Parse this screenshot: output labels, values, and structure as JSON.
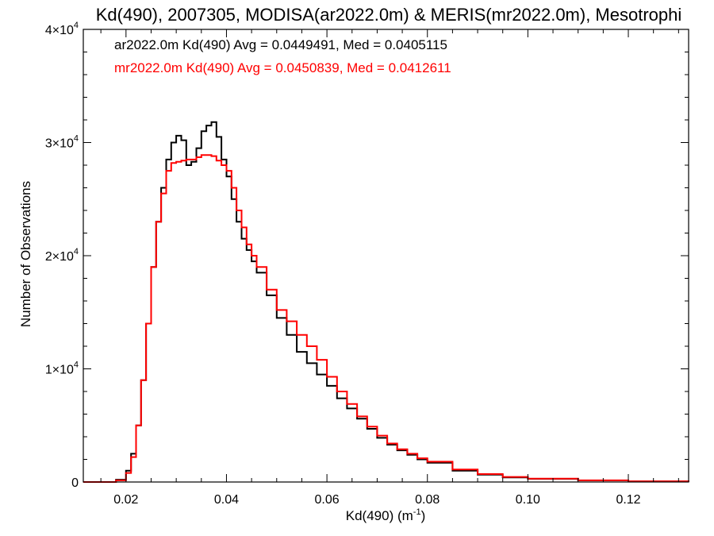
{
  "chart_data": {
    "type": "line",
    "title": "Kd(490), 2007305, MODISA(ar2022.0m) & MERIS(mr2022.0m), Mesotrophi",
    "xlabel": {
      "base": "Kd(490) (m",
      "sup": "-1",
      "tail": ")"
    },
    "ylabel": "Number of Observations",
    "xlim": [
      0.0115,
      0.132
    ],
    "ylim": [
      0,
      40000
    ],
    "x_ticks": [
      {
        "value": 0.02,
        "label": "0.02"
      },
      {
        "value": 0.04,
        "label": "0.04"
      },
      {
        "value": 0.06,
        "label": "0.06"
      },
      {
        "value": 0.08,
        "label": "0.08"
      },
      {
        "value": 0.1,
        "label": "0.10"
      },
      {
        "value": 0.12,
        "label": "0.12"
      }
    ],
    "y_ticks": [
      {
        "value": 0,
        "label": "0",
        "sup": ""
      },
      {
        "value": 10000,
        "label": "1×10",
        "sup": "4"
      },
      {
        "value": 20000,
        "label": "2×10",
        "sup": "4"
      },
      {
        "value": 30000,
        "label": "3×10",
        "sup": "4"
      },
      {
        "value": 40000,
        "label": "4×10",
        "sup": "4"
      }
    ],
    "grid": false,
    "legend_position": "top-left",
    "series": [
      {
        "name": "ar2022.0m Kd(490) Avg = 0.0449491, Med = 0.0405115",
        "color": "#000000",
        "x": [
          0.0115,
          0.016,
          0.018,
          0.02,
          0.021,
          0.022,
          0.023,
          0.024,
          0.025,
          0.026,
          0.027,
          0.028,
          0.029,
          0.03,
          0.031,
          0.032,
          0.033,
          0.034,
          0.035,
          0.036,
          0.037,
          0.038,
          0.039,
          0.04,
          0.041,
          0.042,
          0.043,
          0.044,
          0.045,
          0.046,
          0.048,
          0.05,
          0.052,
          0.054,
          0.056,
          0.058,
          0.06,
          0.062,
          0.064,
          0.066,
          0.068,
          0.07,
          0.072,
          0.074,
          0.076,
          0.078,
          0.08,
          0.085,
          0.09,
          0.095,
          0.1,
          0.11,
          0.12,
          0.132
        ],
        "values": [
          0,
          0,
          200,
          1000,
          2500,
          5000,
          9000,
          14000,
          19000,
          23000,
          26000,
          28500,
          30000,
          30600,
          30200,
          28000,
          28300,
          29500,
          31000,
          31500,
          31800,
          30500,
          28500,
          27000,
          25000,
          23000,
          21500,
          20500,
          19500,
          18500,
          16500,
          14500,
          13000,
          11500,
          10500,
          9500,
          8500,
          7400,
          6500,
          5600,
          4700,
          3900,
          3300,
          2800,
          2400,
          2000,
          1700,
          1000,
          650,
          400,
          280,
          140,
          50,
          20
        ]
      },
      {
        "name": "mr2022.0m Kd(490) Avg = 0.0450839, Med = 0.0412611",
        "color": "#ff0000",
        "x": [
          0.0115,
          0.016,
          0.018,
          0.02,
          0.021,
          0.022,
          0.023,
          0.024,
          0.025,
          0.026,
          0.027,
          0.028,
          0.029,
          0.03,
          0.031,
          0.032,
          0.033,
          0.034,
          0.035,
          0.036,
          0.037,
          0.038,
          0.039,
          0.04,
          0.041,
          0.042,
          0.043,
          0.044,
          0.045,
          0.046,
          0.048,
          0.05,
          0.052,
          0.054,
          0.056,
          0.058,
          0.06,
          0.062,
          0.064,
          0.066,
          0.068,
          0.07,
          0.072,
          0.074,
          0.076,
          0.078,
          0.08,
          0.085,
          0.09,
          0.095,
          0.1,
          0.11,
          0.12,
          0.132
        ],
        "values": [
          0,
          0,
          150,
          800,
          2200,
          5000,
          9000,
          14000,
          19000,
          23000,
          25500,
          27500,
          28200,
          28300,
          28400,
          28500,
          28500,
          28700,
          28900,
          28900,
          28800,
          28400,
          28000,
          27500,
          26000,
          24000,
          22500,
          21000,
          20000,
          19000,
          17000,
          15200,
          14200,
          13000,
          12000,
          10800,
          9300,
          8000,
          6900,
          5800,
          4900,
          4100,
          3400,
          2900,
          2500,
          2100,
          1800,
          1100,
          700,
          450,
          300,
          150,
          60,
          20
        ]
      }
    ]
  }
}
